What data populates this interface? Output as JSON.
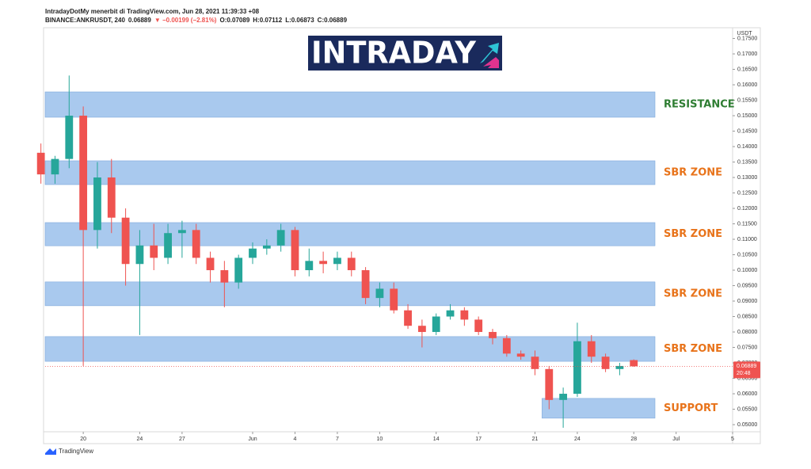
{
  "chart_data": {
    "type": "candlestick",
    "header": {
      "publisher": "IntradayDotMy menerbit di TradingView.com, Jun 28, 2021 11:39:33 +08",
      "symbol": "BINANCE:ANKRUSDT, 240",
      "last": "0.06889",
      "change": "▼ −0.00199 (−2.81%)",
      "open": "O:0.07089",
      "high": "H:0.07112",
      "low": "L:0.06873",
      "close": "C:0.06889"
    },
    "logo": "INTRADAY",
    "currency": "USDT",
    "footer": "TradingView",
    "up_color": "#26a69a",
    "down_color": "#ef5350",
    "zone_color": "#a9c9ee",
    "x": [
      0,
      1,
      2,
      3,
      4,
      5,
      6,
      7,
      8,
      9,
      10,
      11,
      12,
      13,
      14,
      15,
      16,
      17,
      18,
      19,
      20,
      21,
      22,
      23,
      24,
      25,
      26,
      27,
      28,
      29,
      30,
      31,
      32,
      33,
      34,
      35,
      36,
      37,
      38,
      39,
      40,
      41,
      42
    ],
    "open": [
      0.138,
      0.131,
      0.136,
      0.15,
      0.113,
      0.13,
      0.117,
      0.102,
      0.108,
      0.104,
      0.112,
      0.113,
      0.104,
      0.1,
      0.096,
      0.104,
      0.107,
      0.108,
      0.113,
      0.1,
      0.103,
      0.102,
      0.104,
      0.1,
      0.091,
      0.094,
      0.087,
      0.082,
      0.08,
      0.085,
      0.087,
      0.084,
      0.08,
      0.078,
      0.073,
      0.072,
      0.068,
      0.058,
      0.06,
      0.077,
      0.072,
      0.068,
      0.07089
    ],
    "high": [
      0.141,
      0.137,
      0.163,
      0.153,
      0.135,
      0.136,
      0.12,
      0.113,
      0.115,
      0.115,
      0.116,
      0.115,
      0.106,
      0.103,
      0.105,
      0.109,
      0.11,
      0.115,
      0.114,
      0.107,
      0.106,
      0.106,
      0.106,
      0.101,
      0.096,
      0.096,
      0.089,
      0.084,
      0.086,
      0.089,
      0.088,
      0.085,
      0.081,
      0.079,
      0.074,
      0.074,
      0.069,
      0.062,
      0.083,
      0.079,
      0.073,
      0.07,
      0.07112
    ],
    "low": [
      0.128,
      0.128,
      0.133,
      0.069,
      0.107,
      0.112,
      0.095,
      0.079,
      0.1,
      0.102,
      0.104,
      0.102,
      0.096,
      0.088,
      0.094,
      0.102,
      0.105,
      0.106,
      0.098,
      0.098,
      0.099,
      0.1,
      0.098,
      0.089,
      0.088,
      0.086,
      0.081,
      0.075,
      0.079,
      0.084,
      0.082,
      0.079,
      0.076,
      0.072,
      0.071,
      0.066,
      0.055,
      0.049,
      0.059,
      0.07,
      0.067,
      0.066,
      0.06873
    ],
    "close": [
      0.131,
      0.136,
      0.15,
      0.113,
      0.13,
      0.117,
      0.102,
      0.108,
      0.104,
      0.112,
      0.113,
      0.104,
      0.1,
      0.096,
      0.104,
      0.107,
      0.108,
      0.113,
      0.1,
      0.103,
      0.102,
      0.104,
      0.1,
      0.091,
      0.094,
      0.087,
      0.082,
      0.08,
      0.085,
      0.087,
      0.084,
      0.08,
      0.078,
      0.073,
      0.072,
      0.068,
      0.058,
      0.06,
      0.077,
      0.072,
      0.068,
      0.069,
      0.06889
    ],
    "xlim": [
      0.3,
      49
    ],
    "xticks": [
      {
        "value": 3,
        "label": "20"
      },
      {
        "value": 7,
        "label": "24"
      },
      {
        "value": 10,
        "label": "27"
      },
      {
        "value": 15,
        "label": "Jun"
      },
      {
        "value": 18,
        "label": "4"
      },
      {
        "value": 21,
        "label": "7"
      },
      {
        "value": 24,
        "label": "10"
      },
      {
        "value": 28,
        "label": "14"
      },
      {
        "value": 31,
        "label": "17"
      },
      {
        "value": 35,
        "label": "21"
      },
      {
        "value": 38,
        "label": "24"
      },
      {
        "value": 42,
        "label": "28"
      },
      {
        "value": 45,
        "label": "Jul"
      },
      {
        "value": 49,
        "label": "5"
      }
    ],
    "ylim": [
      0.0477,
      0.1777
    ],
    "yticks": [
      {
        "value": 0.05,
        "label": "0.05000"
      },
      {
        "value": 0.055,
        "label": "0.05500"
      },
      {
        "value": 0.06,
        "label": "0.06000"
      },
      {
        "value": 0.065,
        "label": "0.06500"
      },
      {
        "value": 0.07,
        "label": "0.07000"
      },
      {
        "value": 0.075,
        "label": "0.07500"
      },
      {
        "value": 0.08,
        "label": "0.08000"
      },
      {
        "value": 0.085,
        "label": "0.08500"
      },
      {
        "value": 0.09,
        "label": "0.09000"
      },
      {
        "value": 0.095,
        "label": "0.09500"
      },
      {
        "value": 0.1,
        "label": "0.10000"
      },
      {
        "value": 0.105,
        "label": "0.10500"
      },
      {
        "value": 0.11,
        "label": "0.11000"
      },
      {
        "value": 0.115,
        "label": "0.11500"
      },
      {
        "value": 0.12,
        "label": "0.12000"
      },
      {
        "value": 0.125,
        "label": "0.12500"
      },
      {
        "value": 0.13,
        "label": "0.13000"
      },
      {
        "value": 0.135,
        "label": "0.13500"
      },
      {
        "value": 0.14,
        "label": "0.14000"
      },
      {
        "value": 0.145,
        "label": "0.14500"
      },
      {
        "value": 0.15,
        "label": "0.15000"
      },
      {
        "value": 0.155,
        "label": "0.15500"
      },
      {
        "value": 0.16,
        "label": "0.16000"
      },
      {
        "value": 0.165,
        "label": "0.16500"
      },
      {
        "value": 0.17,
        "label": "0.17000"
      },
      {
        "value": 0.175,
        "label": "0.17500"
      }
    ],
    "zones": [
      {
        "label": "RESISTANCE",
        "color": "#2e7d32",
        "low": 0.1495,
        "high": 0.1577,
        "x_start": 0.3
      },
      {
        "label": "SBR ZONE",
        "color": "#e8731a",
        "low": 0.1277,
        "high": 0.1354,
        "x_start": 0.3
      },
      {
        "label": "SBR ZONE",
        "color": "#e8731a",
        "low": 0.1079,
        "high": 0.1154,
        "x_start": 0.3
      },
      {
        "label": "SBR ZONE",
        "color": "#e8731a",
        "low": 0.0885,
        "high": 0.0962,
        "x_start": 0.3
      },
      {
        "label": "SBR ZONE",
        "color": "#e8731a",
        "low": 0.0705,
        "high": 0.0785,
        "x_start": 0.3
      },
      {
        "label": "SUPPORT",
        "color": "#e8731a",
        "low": 0.0521,
        "high": 0.0585,
        "x_start": 35.5
      }
    ],
    "price_tag": {
      "value": 0.06889,
      "time": "20:48",
      "color": "#ef5350"
    }
  }
}
